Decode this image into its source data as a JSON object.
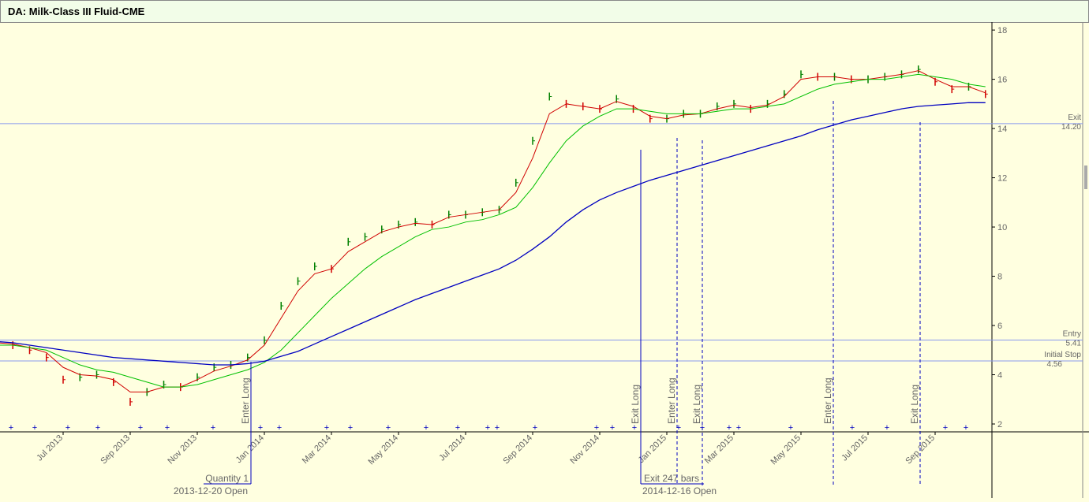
{
  "chart_data": {
    "type": "line",
    "title": "DA: Milk-Class III Fluid-CME",
    "categories": [
      null,
      null,
      null,
      null,
      "Jul 2013",
      null,
      null,
      null,
      "Sep 2013",
      null,
      null,
      null,
      "Nov 2013",
      null,
      null,
      null,
      "Jan 2014",
      null,
      null,
      null,
      "Mar 2014",
      null,
      null,
      null,
      "May 2014",
      null,
      null,
      null,
      "Jul 2014",
      null,
      null,
      null,
      "Sep 2014",
      null,
      null,
      null,
      "Nov 2014",
      null,
      null,
      null,
      "Jan 2015",
      null,
      null,
      null,
      "Mar 2015",
      null,
      null,
      null,
      "May 2015",
      null,
      null,
      null,
      "Jul 2015",
      null,
      null,
      null,
      "Sep 2015",
      null,
      null,
      null
    ],
    "price": {
      "up_color": "#008000",
      "down_color": "#d00000",
      "values": [
        5.3,
        5.2,
        5.0,
        4.7,
        3.8,
        3.9,
        4.0,
        3.7,
        2.9,
        3.3,
        3.6,
        3.5,
        3.9,
        4.3,
        4.4,
        4.7,
        5.4,
        6.8,
        7.8,
        8.4,
        8.3,
        9.4,
        9.6,
        9.9,
        10.1,
        10.2,
        10.1,
        10.5,
        10.5,
        10.6,
        10.7,
        11.8,
        13.5,
        15.3,
        15.0,
        14.9,
        14.8,
        15.2,
        14.8,
        14.4,
        14.4,
        14.6,
        14.6,
        14.9,
        15.0,
        14.8,
        15.0,
        15.4,
        16.2,
        16.1,
        16.1,
        16.0,
        16.0,
        16.1,
        16.2,
        16.4,
        15.9,
        15.6,
        15.7,
        15.4
      ]
    },
    "series": [
      {
        "color": "#d00000",
        "values": [
          5.3,
          5.25,
          5.1,
          4.9,
          4.3,
          4.0,
          3.95,
          3.8,
          3.3,
          3.3,
          3.5,
          3.5,
          3.8,
          4.15,
          4.35,
          4.6,
          5.2,
          6.3,
          7.4,
          8.1,
          8.3,
          9.0,
          9.4,
          9.8,
          10.0,
          10.15,
          10.1,
          10.4,
          10.5,
          10.6,
          10.7,
          11.4,
          12.8,
          14.6,
          15.0,
          14.9,
          14.8,
          15.1,
          14.9,
          14.5,
          14.4,
          14.55,
          14.6,
          14.8,
          14.95,
          14.85,
          14.95,
          15.3,
          16.0,
          16.1,
          16.1,
          16.0,
          16.0,
          16.1,
          16.2,
          16.35,
          16.0,
          15.7,
          15.7,
          15.45
        ]
      },
      {
        "color": "#00c000",
        "values": [
          5.2,
          5.2,
          5.1,
          5.0,
          4.7,
          4.4,
          4.2,
          4.1,
          3.9,
          3.7,
          3.5,
          3.5,
          3.6,
          3.8,
          4.0,
          4.2,
          4.5,
          5.0,
          5.7,
          6.4,
          7.1,
          7.7,
          8.3,
          8.8,
          9.2,
          9.6,
          9.9,
          10.0,
          10.2,
          10.3,
          10.5,
          10.8,
          11.6,
          12.6,
          13.5,
          14.1,
          14.5,
          14.8,
          14.8,
          14.7,
          14.6,
          14.6,
          14.6,
          14.7,
          14.8,
          14.8,
          14.9,
          15.0,
          15.3,
          15.6,
          15.8,
          15.9,
          16.0,
          16.0,
          16.1,
          16.2,
          16.1,
          16.0,
          15.8,
          15.7
        ]
      },
      {
        "color": "#0000c0",
        "values": [
          5.35,
          5.3,
          5.2,
          5.1,
          5.0,
          4.9,
          4.8,
          4.7,
          4.65,
          4.6,
          4.55,
          4.5,
          4.45,
          4.4,
          4.4,
          4.45,
          4.55,
          4.75,
          4.95,
          5.25,
          5.55,
          5.85,
          6.15,
          6.45,
          6.75,
          7.05,
          7.3,
          7.55,
          7.8,
          8.05,
          8.3,
          8.65,
          9.1,
          9.6,
          10.2,
          10.7,
          11.1,
          11.4,
          11.65,
          11.9,
          12.1,
          12.3,
          12.5,
          12.7,
          12.9,
          13.1,
          13.3,
          13.5,
          13.7,
          13.95,
          14.15,
          14.35,
          14.5,
          14.65,
          14.8,
          14.9,
          14.95,
          15.0,
          15.05,
          15.05
        ]
      }
    ],
    "ylim": [
      1.68,
      18.26
    ],
    "yticks": [
      2,
      4,
      6,
      8,
      10,
      12,
      14,
      16,
      18
    ],
    "levels": [
      {
        "name": "Exit",
        "value": 14.2,
        "value_label": "14.20"
      },
      {
        "name": "Entry",
        "value": 5.41,
        "value_label": "5.41"
      },
      {
        "name": "Initial Stop",
        "value": 4.56,
        "value_label": "4.56"
      }
    ],
    "trades": [
      {
        "label": "Enter Long",
        "note": "Quantity 1",
        "date": "2013-12-20 Open"
      },
      {
        "label": "Exit Long",
        "note": "Exit 247 bars",
        "date": "2014-12-16 Open"
      },
      {
        "label": "Enter Long"
      },
      {
        "label": "Exit Long"
      },
      {
        "label": "Enter Long"
      },
      {
        "label": "Exit Long"
      }
    ]
  }
}
